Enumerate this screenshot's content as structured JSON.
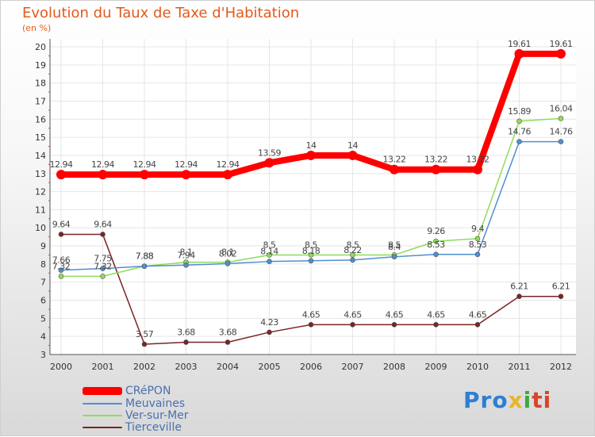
{
  "chart_data": {
    "type": "line",
    "title": "Evolution du Taux de Taxe d'Habitation",
    "ylabel": "(en %)",
    "xlabel": "",
    "x": [
      "2000",
      "2001",
      "2002",
      "2003",
      "2004",
      "2005",
      "2006",
      "2007",
      "2008",
      "2009",
      "2010",
      "2011",
      "2012"
    ],
    "ylim": [
      3,
      20
    ],
    "yticks": [
      "3",
      "4",
      "5",
      "6",
      "7",
      "8",
      "9",
      "10",
      "11",
      "12",
      "13",
      "14",
      "15",
      "16",
      "17",
      "18",
      "19",
      "20"
    ],
    "grid": true,
    "legend_position": "bottom-left",
    "series": [
      {
        "name": "CRéPON",
        "color": "#ff0000",
        "values": [
          12.94,
          12.94,
          12.94,
          12.94,
          12.94,
          13.59,
          14,
          14,
          13.22,
          13.22,
          13.22,
          19.61,
          19.61
        ],
        "labels": [
          "12.94",
          "12.94",
          "12.94",
          "12.94",
          "12.94",
          "13.59",
          "14",
          "14",
          "13.22",
          "13.22",
          "13.22",
          "19.61",
          "19.61"
        ]
      },
      {
        "name": "Meuvaines",
        "color": "#4f8fcf",
        "values": [
          7.66,
          7.75,
          7.88,
          7.94,
          8.02,
          8.14,
          8.18,
          8.22,
          8.4,
          8.53,
          8.53,
          14.76,
          14.76
        ],
        "labels": [
          "7.66",
          "7.75",
          "7.88",
          "7.94",
          "8.02",
          "8.14",
          "8.18",
          "8.22",
          "8.4",
          "8.53",
          "8.53",
          "14.76",
          "14.76"
        ]
      },
      {
        "name": "Ver-sur-Mer",
        "color": "#8fdc5a",
        "values": [
          7.32,
          7.32,
          7.88,
          8.1,
          8.1,
          8.5,
          8.5,
          8.5,
          8.5,
          9.26,
          9.4,
          15.89,
          16.04
        ],
        "labels": [
          "7.32",
          "7.32",
          "7.88",
          "8.1",
          "8.1",
          "8.5",
          "8.5",
          "8.5",
          "8.5",
          "9.26",
          "9.4",
          "15.89",
          "16.04"
        ]
      },
      {
        "name": "Tierceville",
        "color": "#7a2424",
        "values": [
          9.64,
          9.64,
          3.57,
          3.68,
          3.68,
          4.23,
          4.65,
          4.65,
          4.65,
          4.65,
          4.65,
          6.21,
          6.21
        ],
        "labels": [
          "9.64",
          "9.64",
          "3.57",
          "3.68",
          "3.68",
          "4.23",
          "4.65",
          "4.65",
          "4.65",
          "4.65",
          "4.65",
          "6.21",
          "6.21"
        ]
      }
    ]
  },
  "logo": {
    "p1": "Pro",
    "p2": "x",
    "p3": "i",
    "p4": "ti"
  }
}
